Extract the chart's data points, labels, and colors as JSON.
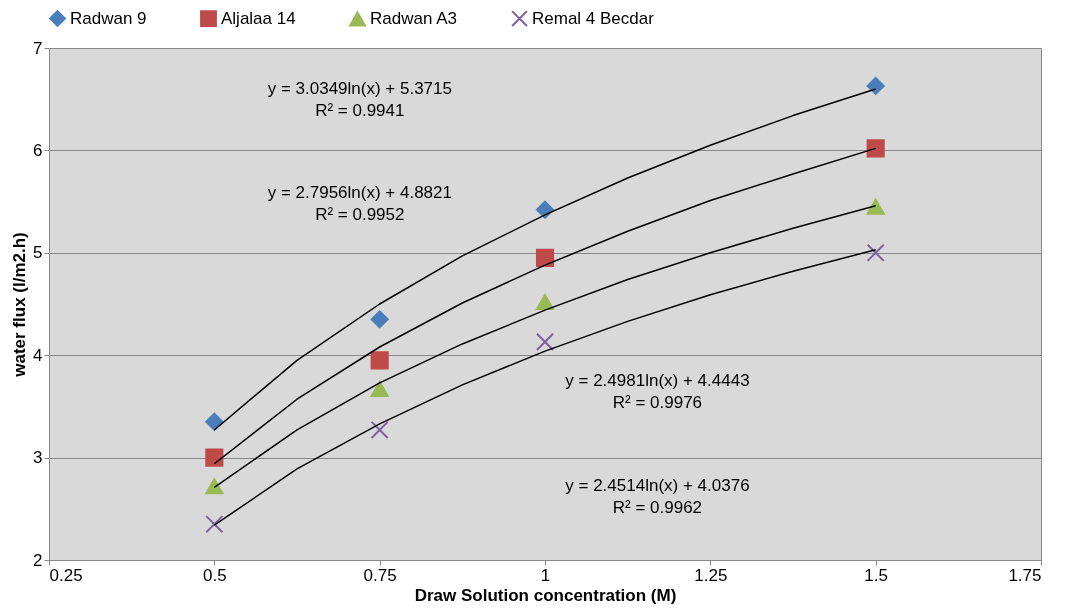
{
  "chart_data": {
    "type": "scatter",
    "xlabel": "Draw Solution concentration (M)",
    "ylabel": "water flux (l/m2.h)",
    "x": [
      0.5,
      0.75,
      1,
      1.5
    ],
    "xlim": [
      0.25,
      1.75
    ],
    "xticks": [
      0.25,
      0.5,
      0.75,
      1,
      1.25,
      1.5,
      1.75
    ],
    "ylim": [
      2,
      7
    ],
    "yticks": [
      2,
      3,
      4,
      5,
      6,
      7
    ],
    "grid": "y",
    "legend": "top",
    "series": [
      {
        "name": "Radwan 9",
        "color": "#4a7ebb",
        "marker": "diamond",
        "values": [
          3.35,
          4.35,
          5.42,
          6.63
        ]
      },
      {
        "name": "Aljalaa 14",
        "color": "#be4b48",
        "marker": "square",
        "values": [
          3.0,
          3.95,
          4.95,
          6.02
        ]
      },
      {
        "name": "Radwan A3",
        "color": "#98b954",
        "marker": "triangle",
        "values": [
          2.72,
          3.67,
          4.52,
          5.45
        ]
      },
      {
        "name": "Remal 4 Becdar",
        "color": "#7d60a0",
        "marker": "cross",
        "values": [
          2.35,
          3.27,
          4.13,
          5.0
        ]
      },
      {
        "type": "line",
        "color": "#000000",
        "x": [
          0.5,
          0.625,
          0.75,
          0.875,
          1,
          1.125,
          1.25,
          1.375,
          1.5
        ],
        "values": [
          3.27,
          3.95,
          4.5,
          4.97,
          5.37,
          5.73,
          6.05,
          6.34,
          6.6
        ]
      },
      {
        "type": "line",
        "color": "#000000",
        "x": [
          0.5,
          0.625,
          0.75,
          0.875,
          1,
          1.125,
          1.25,
          1.375,
          1.5
        ],
        "values": [
          2.94,
          3.57,
          4.08,
          4.51,
          4.88,
          5.21,
          5.51,
          5.77,
          6.02
        ]
      },
      {
        "type": "line",
        "color": "#000000",
        "x": [
          0.5,
          0.625,
          0.75,
          0.875,
          1,
          1.125,
          1.25,
          1.375,
          1.5
        ],
        "values": [
          2.71,
          3.27,
          3.73,
          4.11,
          4.44,
          4.74,
          5.0,
          5.24,
          5.46
        ]
      },
      {
        "type": "line",
        "color": "#000000",
        "x": [
          0.5,
          0.625,
          0.75,
          0.875,
          1,
          1.125,
          1.25,
          1.375,
          1.5
        ],
        "values": [
          2.34,
          2.89,
          3.33,
          3.71,
          4.04,
          4.33,
          4.59,
          4.82,
          5.03
        ]
      }
    ],
    "annotations": [
      "y = 3.0349ln(x) + 5.3715\nR² = 0.9941",
      "y = 2.7956ln(x) + 4.8821\nR² = 0.9952",
      "y = 2.4981ln(x) + 4.4443\nR² = 0.9976",
      "y = 2.4514ln(x) + 4.0376\nR² = 0.9962"
    ]
  }
}
